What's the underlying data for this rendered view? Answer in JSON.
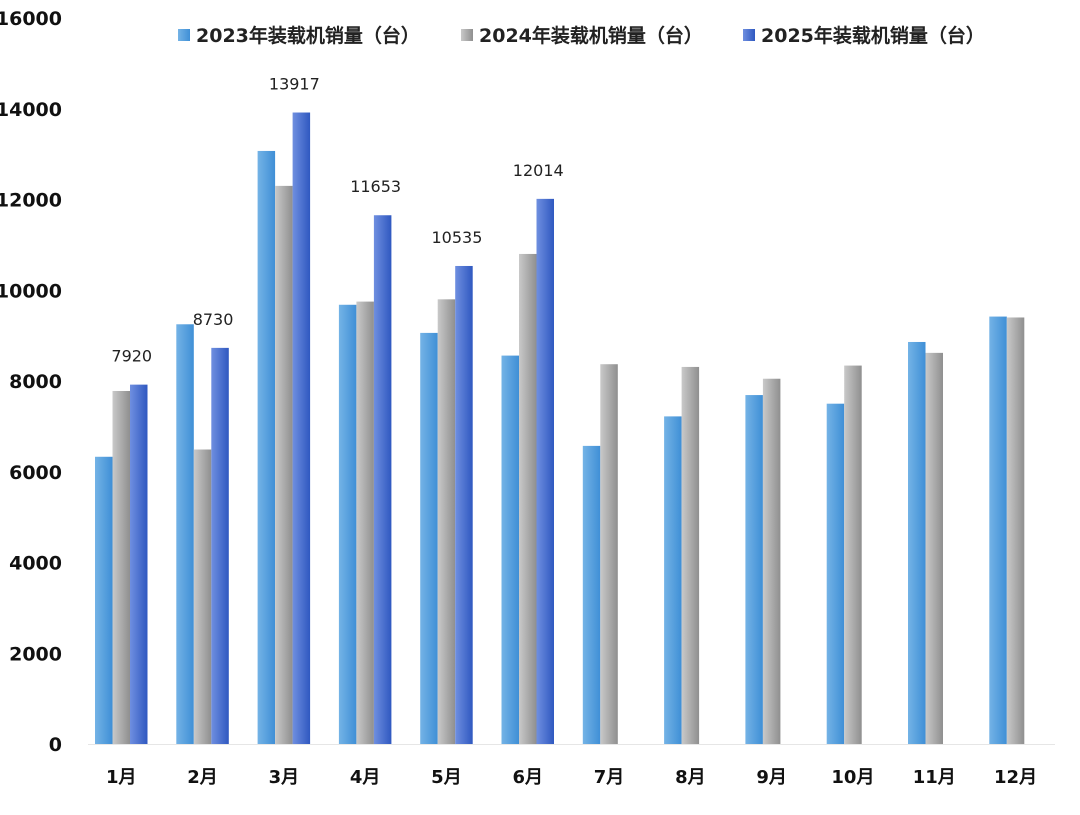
{
  "chart_data": {
    "type": "bar",
    "title": "",
    "xlabel": "",
    "ylabel": "",
    "ylim": [
      0,
      16000
    ],
    "yticks": [
      0,
      2000,
      4000,
      6000,
      8000,
      10000,
      12000,
      14000,
      16000
    ],
    "grid": false,
    "legend_position": "top",
    "categories": [
      "1月",
      "2月",
      "3月",
      "4月",
      "5月",
      "6月",
      "7月",
      "8月",
      "9月",
      "10月",
      "11月",
      "12月"
    ],
    "series": [
      {
        "name": "2023年装载机销量（台）",
        "color_light": "#74b3e6",
        "color_dark": "#3f8fd6",
        "values": [
          6330,
          9250,
          13070,
          9680,
          9060,
          8560,
          6570,
          7220,
          7690,
          7500,
          8860,
          9420
        ]
      },
      {
        "name": "2024年装载机销量（台）",
        "color_light": "#c9c9c9",
        "color_dark": "#8f8f8f",
        "values": [
          7780,
          6490,
          12300,
          9750,
          9800,
          10800,
          8370,
          8310,
          8050,
          8340,
          8620,
          9400
        ]
      },
      {
        "name": "2025年装载机销量（台）",
        "color_light": "#6f8fe0",
        "color_dark": "#2f58c0",
        "values": [
          7920,
          8730,
          13917,
          11653,
          10535,
          12014,
          null,
          null,
          null,
          null,
          null,
          null
        ],
        "data_labels": [
          "7920",
          "8730",
          "13917",
          "11653",
          "10535",
          "12014"
        ]
      }
    ]
  }
}
